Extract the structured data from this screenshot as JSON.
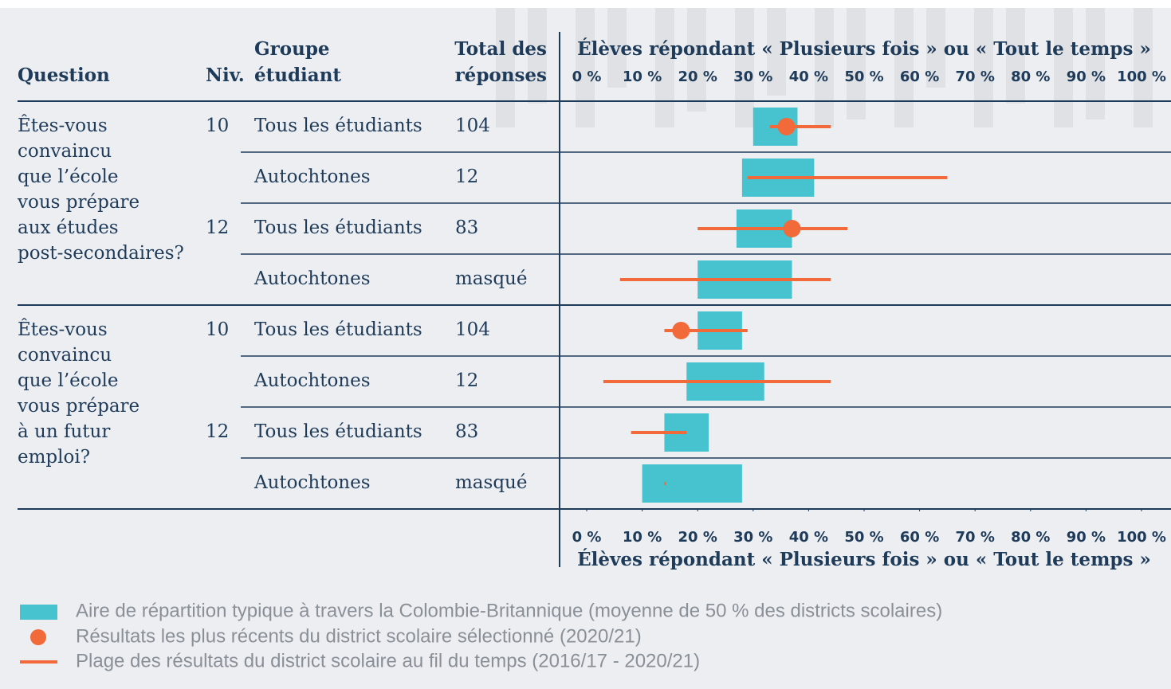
{
  "chart_data": {
    "type": "range_dot",
    "title": "Élèves répondant « Plusieurs fois » ou « Tout le temps »",
    "headers": {
      "question": "Question",
      "level": "Niv.",
      "group": [
        "Groupe",
        "étudiant"
      ],
      "total": [
        "Total des",
        "réponses"
      ]
    },
    "xlim": [
      0,
      100
    ],
    "xticks": [
      {
        "value": 0,
        "label": "0 %"
      },
      {
        "value": 10,
        "label": "10 %"
      },
      {
        "value": 20,
        "label": "20 %"
      },
      {
        "value": 30,
        "label": "30 %"
      },
      {
        "value": 40,
        "label": "40 %"
      },
      {
        "value": 50,
        "label": "50 %"
      },
      {
        "value": 60,
        "label": "60 %"
      },
      {
        "value": 70,
        "label": "70 %"
      },
      {
        "value": 80,
        "label": "80 %"
      },
      {
        "value": 90,
        "label": "90 %"
      },
      {
        "value": 100,
        "label": "100 %"
      }
    ],
    "box_color": "#47c3cf",
    "dot_color": "#f2693a",
    "range_color": "#f2693a",
    "questions": [
      {
        "lines": [
          "Êtes-vous",
          "convaincu",
          "que l’école",
          "vous prépare",
          "aux études",
          "post-secondaires?"
        ],
        "levels": [
          {
            "level": 10,
            "groups": [
              {
                "name": "Tous les étudiants",
                "total": 104,
                "box": [
                  30,
                  38
                ],
                "dot": 36,
                "range": [
                  33,
                  44
                ]
              },
              {
                "name": "Autochtones",
                "total": 12,
                "box": [
                  28,
                  41
                ],
                "range": [
                  29,
                  65
                ]
              }
            ]
          },
          {
            "level": 12,
            "groups": [
              {
                "name": "Tous les étudiants",
                "total": 83,
                "box": [
                  27,
                  37
                ],
                "dot": 37,
                "range": [
                  20,
                  47
                ]
              },
              {
                "name": "Autochtones",
                "total": "masqué",
                "box": [
                  20,
                  37
                ],
                "range": [
                  6,
                  44
                ]
              }
            ]
          }
        ]
      },
      {
        "lines": [
          "Êtes-vous",
          "convaincu",
          "que l’école",
          "vous prépare",
          "à un futur",
          "emploi?"
        ],
        "levels": [
          {
            "level": 10,
            "groups": [
              {
                "name": "Tous les étudiants",
                "total": 104,
                "box": [
                  20,
                  28
                ],
                "dot": 17,
                "range": [
                  14,
                  29
                ]
              },
              {
                "name": "Autochtones",
                "total": 12,
                "box": [
                  18,
                  32
                ],
                "range": [
                  3,
                  44
                ]
              }
            ]
          },
          {
            "level": 12,
            "groups": [
              {
                "name": "Tous les étudiants",
                "total": 83,
                "box": [
                  14,
                  22
                ],
                "range": [
                  8,
                  18
                ]
              },
              {
                "name": "Autochtones",
                "total": "masqué",
                "box": [
                  10,
                  28
                ],
                "range": [
                  14,
                  14
                ]
              }
            ]
          }
        ]
      }
    ],
    "legend": [
      "Aire de répartition typique à travers la Colombie-Britannique (moyenne de 50 % des districts scolaires)",
      "Résultats les plus récents du district scolaire sélectionné (2020/21)",
      "Plage des résultats du district scolaire au fil du temps (2016/17 - 2020/21)"
    ]
  }
}
